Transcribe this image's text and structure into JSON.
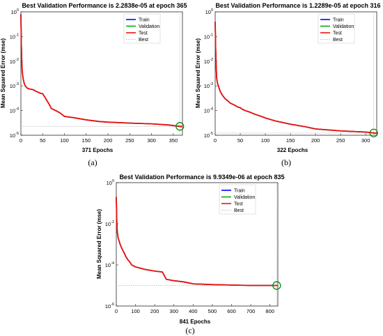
{
  "colors": {
    "train": "#0000ff",
    "validation": "#00b000",
    "test": "#ee1111",
    "best": "#bdbdbd",
    "best_marker": "#0a8a0a",
    "axes": "#262626",
    "background": "#ffffff"
  },
  "legend_labels": [
    "Train",
    "Validation",
    "Test",
    "Best"
  ],
  "chart_data": [
    {
      "type": "line",
      "title": "Best Validation Performance is 2.2838e-05 at epoch 365",
      "xlabel": "371 Epochs",
      "ylabel": "Mean Squared Error  (mse)",
      "caption": "(a)",
      "xlim": [
        0,
        371
      ],
      "xticks": [
        0,
        50,
        100,
        150,
        200,
        250,
        300,
        350
      ],
      "yscale": "log",
      "ylim_exponent": [
        -5,
        0
      ],
      "yticks": [
        {
          "base": "10",
          "exp": "0",
          "v": 1
        },
        {
          "base": "10",
          "exp": "-1",
          "v": 0.1
        },
        {
          "base": "10",
          "exp": "-2",
          "v": 0.01
        },
        {
          "base": "10",
          "exp": "-3",
          "v": 0.001
        },
        {
          "base": "10",
          "exp": "-4",
          "v": 0.0001
        },
        {
          "base": "10",
          "exp": "-5",
          "v": 1e-05
        }
      ],
      "grid": false,
      "legend_position": "top-right",
      "best": {
        "epoch": 365,
        "value": 2.2838e-05
      },
      "series": [
        {
          "name": "Train",
          "x": [
            0,
            1,
            2,
            3,
            5,
            8,
            10,
            15,
            20,
            28,
            35,
            40,
            45,
            50,
            55,
            60,
            65,
            70,
            75,
            80,
            90,
            100,
            120,
            150,
            180,
            200,
            250,
            300,
            340,
            365,
            371
          ],
          "y": [
            0.8,
            0.05,
            0.01,
            0.004,
            0.002,
            0.0012,
            0.001,
            0.0008,
            0.00075,
            0.0007,
            0.0006,
            0.00055,
            0.0005,
            0.00048,
            0.00035,
            0.00025,
            0.00018,
            0.00012,
            0.00011,
            0.0001,
            8e-05,
            5.8e-05,
            5.2e-05,
            4.2e-05,
            3.6e-05,
            3.4e-05,
            3.1e-05,
            2.9e-05,
            2.6e-05,
            2.28e-05,
            2.27e-05
          ]
        },
        {
          "name": "Validation",
          "x": [
            0,
            1,
            2,
            3,
            5,
            8,
            10,
            15,
            20,
            28,
            35,
            40,
            45,
            50,
            55,
            60,
            65,
            70,
            75,
            80,
            90,
            100,
            120,
            150,
            180,
            200,
            250,
            300,
            340,
            365,
            371
          ],
          "y": [
            0.8,
            0.05,
            0.01,
            0.004,
            0.002,
            0.0012,
            0.001,
            0.0008,
            0.00075,
            0.0007,
            0.0006,
            0.00055,
            0.0005,
            0.00048,
            0.00035,
            0.00025,
            0.00018,
            0.00012,
            0.00011,
            0.0001,
            8e-05,
            5.8e-05,
            5.2e-05,
            4.2e-05,
            3.6e-05,
            3.4e-05,
            3.1e-05,
            2.9e-05,
            2.6e-05,
            2.28e-05,
            2.28e-05
          ]
        },
        {
          "name": "Test",
          "x": [
            0,
            1,
            2,
            3,
            5,
            8,
            10,
            15,
            20,
            28,
            35,
            40,
            45,
            50,
            55,
            60,
            65,
            70,
            75,
            80,
            90,
            100,
            120,
            150,
            180,
            200,
            250,
            300,
            340,
            365,
            371
          ],
          "y": [
            0.8,
            0.05,
            0.01,
            0.004,
            0.002,
            0.0012,
            0.001,
            0.0008,
            0.00075,
            0.0007,
            0.0006,
            0.00055,
            0.0005,
            0.00048,
            0.00035,
            0.00025,
            0.00018,
            0.00012,
            0.00011,
            0.0001,
            8e-05,
            5.8e-05,
            5.2e-05,
            4.2e-05,
            3.6e-05,
            3.4e-05,
            3.1e-05,
            2.9e-05,
            2.6e-05,
            2.28e-05,
            2.28e-05
          ]
        }
      ]
    },
    {
      "type": "line",
      "title": "Best Validation Performance is 1.2289e-05 at epoch 316",
      "xlabel": "322 Epochs",
      "ylabel": "Mean Squared Error  (mse)",
      "caption": "(b)",
      "xlim": [
        0,
        322
      ],
      "xticks": [
        0,
        50,
        100,
        150,
        200,
        250,
        300
      ],
      "yscale": "log",
      "ylim_exponent": [
        -5,
        0
      ],
      "yticks": [
        {
          "base": "10",
          "exp": "0",
          "v": 1
        },
        {
          "base": "10",
          "exp": "-1",
          "v": 0.1
        },
        {
          "base": "10",
          "exp": "-2",
          "v": 0.01
        },
        {
          "base": "10",
          "exp": "-3",
          "v": 0.001
        },
        {
          "base": "10",
          "exp": "-4",
          "v": 0.0001
        },
        {
          "base": "10",
          "exp": "-5",
          "v": 1e-05
        }
      ],
      "grid": false,
      "legend_position": "top-right",
      "best": {
        "epoch": 316,
        "value": 1.2289e-05
      },
      "series": [
        {
          "name": "Train",
          "x": [
            0,
            1,
            2,
            3,
            5,
            8,
            10,
            15,
            20,
            25,
            30,
            35,
            40,
            45,
            50,
            55,
            60,
            70,
            80,
            90,
            100,
            120,
            150,
            180,
            200,
            250,
            300,
            316,
            322
          ],
          "y": [
            0.4,
            0.03,
            0.006,
            0.002,
            0.0012,
            0.0008,
            0.0006,
            0.0004,
            0.0003,
            0.00025,
            0.0002,
            0.00018,
            0.00016,
            0.00014,
            0.00013,
            0.00011,
            0.0001,
            8.5e-05,
            7e-05,
            6e-05,
            5e-05,
            3.8e-05,
            2.8e-05,
            2.2e-05,
            1.8e-05,
            1.5e-05,
            1.35e-05,
            1.23e-05,
            1.22e-05
          ]
        },
        {
          "name": "Validation",
          "x": [
            0,
            1,
            2,
            3,
            5,
            8,
            10,
            15,
            20,
            25,
            30,
            35,
            40,
            45,
            50,
            55,
            60,
            70,
            80,
            90,
            100,
            120,
            150,
            180,
            200,
            250,
            300,
            316,
            322
          ],
          "y": [
            0.4,
            0.03,
            0.006,
            0.002,
            0.0012,
            0.0008,
            0.0006,
            0.0004,
            0.0003,
            0.00025,
            0.0002,
            0.00018,
            0.00016,
            0.00014,
            0.00013,
            0.00011,
            0.0001,
            8.5e-05,
            7e-05,
            6e-05,
            5e-05,
            3.8e-05,
            2.8e-05,
            2.2e-05,
            1.8e-05,
            1.5e-05,
            1.35e-05,
            1.23e-05,
            1.23e-05
          ]
        },
        {
          "name": "Test",
          "x": [
            0,
            1,
            2,
            3,
            5,
            8,
            10,
            15,
            20,
            25,
            30,
            35,
            40,
            45,
            50,
            55,
            60,
            70,
            80,
            90,
            100,
            120,
            150,
            180,
            200,
            250,
            300,
            316,
            322
          ],
          "y": [
            0.4,
            0.03,
            0.006,
            0.002,
            0.0012,
            0.0008,
            0.0006,
            0.0004,
            0.0003,
            0.00025,
            0.0002,
            0.00018,
            0.00016,
            0.00014,
            0.00013,
            0.00011,
            0.0001,
            8.5e-05,
            7e-05,
            6e-05,
            5e-05,
            3.8e-05,
            2.8e-05,
            2.2e-05,
            1.8e-05,
            1.5e-05,
            1.35e-05,
            1.23e-05,
            1.23e-05
          ]
        }
      ]
    },
    {
      "type": "line",
      "title": "Best Validation Performance is 9.9349e-06 at epoch 835",
      "xlabel": "841 Epochs",
      "ylabel": "Mean Squared Error  (mse)",
      "caption": "(c)",
      "xlim": [
        0,
        841
      ],
      "xticks": [
        0,
        100,
        200,
        300,
        400,
        500,
        600,
        700,
        800
      ],
      "yscale": "log",
      "ylim_exponent": [
        -6,
        0
      ],
      "yticks": [
        {
          "base": "10",
          "exp": "0",
          "v": 1
        },
        {
          "base": "10",
          "exp": "-2",
          "v": 0.01
        },
        {
          "base": "10",
          "exp": "-4",
          "v": 0.0001
        },
        {
          "base": "10",
          "exp": "-6",
          "v": 1e-06
        }
      ],
      "grid": false,
      "legend_position": "top-right",
      "best": {
        "epoch": 835,
        "value": 9.9349e-06
      },
      "series": [
        {
          "name": "Train",
          "x": [
            0,
            2,
            5,
            10,
            20,
            30,
            40,
            50,
            60,
            70,
            80,
            100,
            150,
            200,
            240,
            250,
            260,
            300,
            350,
            400,
            500,
            600,
            700,
            800,
            835,
            841
          ],
          "y": [
            0.2,
            0.02,
            0.004,
            0.002,
            0.001,
            0.0006,
            0.0004,
            0.00025,
            0.00018,
            0.00014,
            0.0001,
            8e-05,
            6e-05,
            5e-05,
            4.5e-05,
            3e-05,
            2e-05,
            1.7e-05,
            1.5e-05,
            1.2e-05,
            1.1e-05,
            1.05e-05,
            1e-05,
            1e-05,
            9.9e-06,
            9.9e-06
          ]
        },
        {
          "name": "Validation",
          "x": [
            0,
            2,
            5,
            10,
            20,
            30,
            40,
            50,
            60,
            70,
            80,
            100,
            150,
            200,
            240,
            250,
            260,
            300,
            350,
            400,
            500,
            600,
            700,
            800,
            835,
            841
          ],
          "y": [
            0.2,
            0.02,
            0.004,
            0.002,
            0.001,
            0.0006,
            0.0004,
            0.00025,
            0.00018,
            0.00014,
            0.0001,
            8e-05,
            6e-05,
            5e-05,
            4.5e-05,
            3e-05,
            2e-05,
            1.7e-05,
            1.5e-05,
            1.2e-05,
            1.1e-05,
            1.05e-05,
            1e-05,
            1e-05,
            9.9e-06,
            9.9e-06
          ]
        },
        {
          "name": "Test",
          "x": [
            0,
            2,
            5,
            10,
            20,
            30,
            40,
            50,
            60,
            70,
            80,
            100,
            150,
            200,
            240,
            250,
            260,
            300,
            350,
            400,
            500,
            600,
            700,
            800,
            835,
            841
          ],
          "y": [
            0.2,
            0.02,
            0.004,
            0.002,
            0.001,
            0.0006,
            0.0004,
            0.00025,
            0.00018,
            0.00014,
            0.0001,
            8e-05,
            6e-05,
            5e-05,
            4.5e-05,
            3e-05,
            2e-05,
            1.7e-05,
            1.5e-05,
            1.2e-05,
            1.1e-05,
            1.05e-05,
            1e-05,
            1e-05,
            9.9e-06,
            9.9e-06
          ]
        }
      ]
    }
  ]
}
